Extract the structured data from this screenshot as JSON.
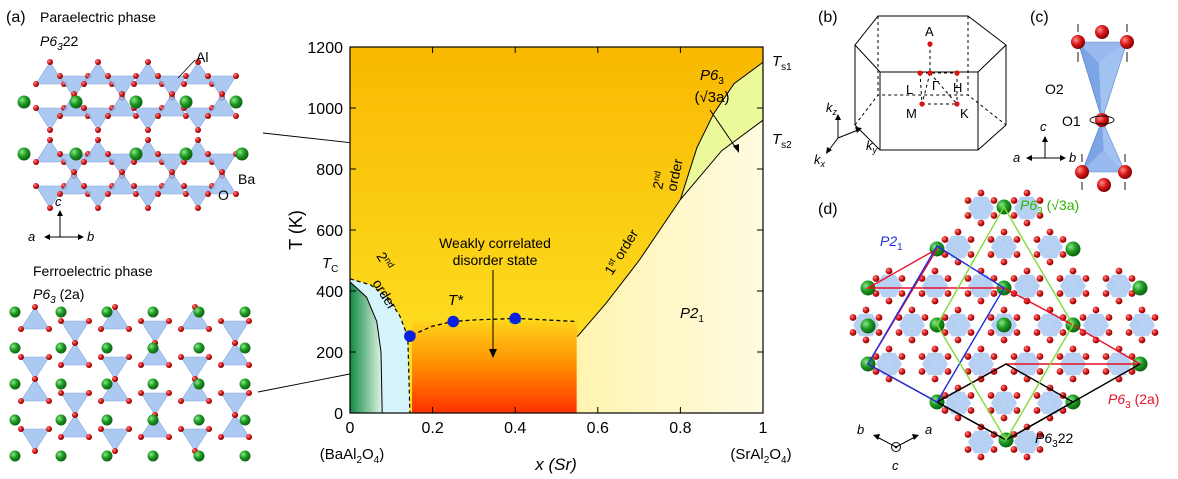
{
  "panels": {
    "a": "(a)",
    "b": "(b)",
    "c": "(c)",
    "d": "(d)"
  },
  "structures": {
    "paraelectric_title": "Paraelectric phase",
    "paraelectric_group": "P6",
    "paraelectric_group_sub": "3",
    "paraelectric_group_tail": "22",
    "ferroelectric_title": "Ferroelectric phase",
    "ferroelectric_group": "P6",
    "ferroelectric_group_sub": "3",
    "ferroelectric_group_tail": " (2a)",
    "label_al": "Al",
    "label_ba": "Ba",
    "label_o": "O",
    "axis_c": "c",
    "axis_a": "a",
    "axis_b": "b"
  },
  "chart_data": {
    "type": "phase-diagram",
    "xlabel": "x (Sr)",
    "ylabel": "T (K)",
    "xlim": [
      0,
      1
    ],
    "ylim": [
      0,
      1200
    ],
    "x_ticks": [
      "0",
      "0.2",
      "0.4",
      "0.6",
      "0.8",
      "1"
    ],
    "x_tick_values": [
      0,
      0.2,
      0.4,
      0.6,
      0.8,
      1
    ],
    "y_ticks": [
      "0",
      "200",
      "400",
      "600",
      "800",
      "1000",
      "1200"
    ],
    "y_tick_values": [
      0,
      200,
      400,
      600,
      800,
      1000,
      1200
    ],
    "x_end_labels": [
      "(BaAl2O4)",
      "(SrAl2O4)"
    ],
    "Tc_boundary": [
      [
        0,
        440
      ],
      [
        0.05,
        420
      ],
      [
        0.09,
        380
      ],
      [
        0.12,
        320
      ],
      [
        0.14,
        250
      ],
      [
        0.145,
        0
      ]
    ],
    "inner_boundary": [
      [
        0,
        430
      ],
      [
        0.04,
        380
      ],
      [
        0.065,
        300
      ],
      [
        0.075,
        200
      ],
      [
        0.078,
        0
      ]
    ],
    "Tstar_line": [
      [
        0.15,
        255
      ],
      [
        0.2,
        285
      ],
      [
        0.25,
        300
      ],
      [
        0.3,
        305
      ],
      [
        0.4,
        310
      ],
      [
        0.55,
        300
      ]
    ],
    "Tstar_points": [
      [
        0.145,
        252
      ],
      [
        0.25,
        300
      ],
      [
        0.4,
        310
      ]
    ],
    "disorder_region": {
      "x": [
        0.15,
        0.55
      ],
      "T": [
        0,
        300
      ]
    },
    "first_order_line": [
      [
        0.55,
        250
      ],
      [
        0.62,
        360
      ],
      [
        0.7,
        500
      ],
      [
        0.8,
        700
      ],
      [
        0.9,
        860
      ],
      [
        1.0,
        960
      ]
    ],
    "Ts1_line": [
      [
        0.8,
        700
      ],
      [
        0.84,
        870
      ],
      [
        0.88,
        980
      ],
      [
        0.93,
        1080
      ],
      [
        1.0,
        1150
      ]
    ],
    "labels": {
      "Tc": "T",
      "Tc_sub": "C",
      "second_order": "2",
      "second_order_sup": "nd",
      "order": "order",
      "first_order": "1",
      "first_order_sup": "st",
      "weakly_1": "Weakly correlated",
      "weakly_2": "disorder state",
      "tstar": "T*",
      "p21": "P2",
      "p21_sub": "1",
      "p63_root": "P6",
      "p63_root_sub": "3",
      "p63_root_line2": "(√3a)",
      "ts1": "T",
      "ts1_sub": "s1",
      "ts2": "T",
      "ts2_sub": "s2"
    },
    "colors": {
      "orange_high": "#f9b800",
      "yellow": "#fde020",
      "pale_yellow": "#fff6b8",
      "green": "#1f9a4f",
      "light_cyan": "#d6f4fb",
      "red": "#ff3a00",
      "marker": "#0a20e0"
    }
  },
  "bz": {
    "k_z": "k",
    "k_z_sub": "z",
    "k_x": "k",
    "k_x_sub": "x",
    "k_y": "k",
    "k_y_sub": "y",
    "points": [
      "A",
      "L",
      "Γ",
      "H",
      "M",
      "K"
    ]
  },
  "tetra": {
    "o2": "O2",
    "o1": "O1",
    "c": "c",
    "a": "a",
    "b": "b"
  },
  "cells": {
    "p21": "P2",
    "p21_sub": "1",
    "p63root": "P6",
    "p63root_sub": "3",
    "p63root_tail": " (√3a)",
    "p632a": "P6",
    "p632a_sub": "3",
    "p632a_tail": " (2a)",
    "p6322": "P6",
    "p6322_sub": "3",
    "p6322_tail": "22",
    "axis_b": "b",
    "axis_a": "a",
    "axis_c": "c",
    "colors": {
      "p21": "#1a2ee0",
      "p63root": "#2db400",
      "p632a": "#e8102a",
      "p6322": "#000000"
    }
  }
}
